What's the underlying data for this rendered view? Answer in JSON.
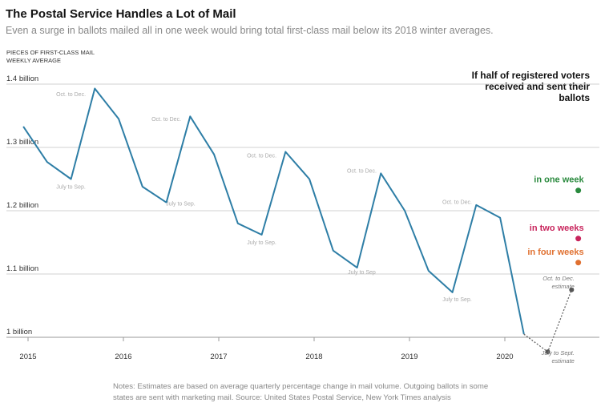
{
  "title": "The Postal Service Handles a Lot of Mail",
  "subtitle": "Even a surge in ballots mailed all in one week would bring total first-class mail below its 2018 winter averages.",
  "ylabel_lines": [
    "PIECES OF FIRST-CLASS MAIL",
    "WEEKLY AVERAGE"
  ],
  "notes": "Notes: Estimates are based on average quarterly percentage change in mail volume. Outgoing ballots in some states are sent with marketing mail. Source: United States Postal Service, New York Times analysis",
  "scenario_heading": "If half of registered voters received and sent their ballots",
  "chart_data": {
    "type": "line",
    "ylim": [
      0.975,
      1.4
    ],
    "xlim": [
      2014.92,
      2020.92
    ],
    "yticks": [
      {
        "value": 1.0,
        "label": "1 billion"
      },
      {
        "value": 1.1,
        "label": "1.1 billion"
      },
      {
        "value": 1.2,
        "label": "1.2 billion"
      },
      {
        "value": 1.3,
        "label": "1.3 billion"
      },
      {
        "value": 1.4,
        "label": "1.4 billion"
      }
    ],
    "xticks": [
      {
        "value": 2015,
        "label": "2015"
      },
      {
        "value": 2016,
        "label": "2016"
      },
      {
        "value": 2017,
        "label": "2017"
      },
      {
        "value": 2018,
        "label": "2018"
      },
      {
        "value": 2019,
        "label": "2019"
      },
      {
        "value": 2020,
        "label": "2020"
      }
    ],
    "grid": true,
    "series": [
      {
        "color": "#2e7ea6",
        "x": [
          2014.95,
          2015.2,
          2015.45,
          2015.7,
          2015.95,
          2016.2,
          2016.45,
          2016.7,
          2016.95,
          2017.2,
          2017.45,
          2017.7,
          2017.95,
          2018.2,
          2018.45,
          2018.7,
          2018.95,
          2019.2,
          2019.45,
          2019.7,
          2019.95,
          2020.2
        ],
        "y": [
          1.333,
          1.277,
          1.25,
          1.393,
          1.345,
          1.238,
          1.213,
          1.349,
          1.289,
          1.18,
          1.162,
          1.293,
          1.25,
          1.137,
          1.11,
          1.259,
          1.2,
          1.105,
          1.071,
          1.209,
          1.189,
          1.005
        ]
      }
    ],
    "estimate": {
      "color": "#666666",
      "x": [
        2020.2,
        2020.45,
        2020.7
      ],
      "y": [
        1.005,
        0.977,
        1.075
      ]
    },
    "annotations": [
      {
        "text": "Oct. to Dec.",
        "x": 2015.45,
        "y": 1.381
      },
      {
        "text": "Oct. to Dec.",
        "x": 2016.45,
        "y": 1.342
      },
      {
        "text": "Oct. to Dec.",
        "x": 2017.45,
        "y": 1.284
      },
      {
        "text": "Oct. to Dec.",
        "x": 2018.5,
        "y": 1.26
      },
      {
        "text": "Oct. to Dec.",
        "x": 2019.5,
        "y": 1.211
      },
      {
        "text": "July to Sep.",
        "x": 2015.45,
        "y": 1.235
      },
      {
        "text": "July to Sep.",
        "x": 2016.6,
        "y": 1.208
      },
      {
        "text": "July to Sep.",
        "x": 2017.45,
        "y": 1.147
      },
      {
        "text": "July to Sep",
        "x": 2018.5,
        "y": 1.1
      },
      {
        "text": "July to Sep.",
        "x": 2019.5,
        "y": 1.057
      }
    ],
    "estimate_labels": [
      {
        "lines": [
          "Oct. to Dec.",
          "estimate"
        ],
        "x": 2020.73,
        "y": 1.09
      },
      {
        "lines": [
          "July to Sept.",
          "estimate"
        ],
        "x": 2020.73,
        "y": 0.972
      }
    ],
    "scenarios": [
      {
        "label": "in one week",
        "value": 1.232,
        "color": "#2a8a3e"
      },
      {
        "label": "in two weeks",
        "value": 1.156,
        "color": "#c8245c"
      },
      {
        "label": "in four weeks",
        "value": 1.118,
        "color": "#e07030"
      }
    ]
  }
}
